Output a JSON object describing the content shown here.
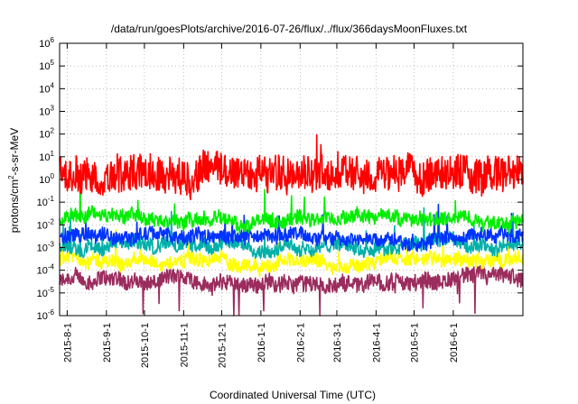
{
  "chart_data": {
    "type": "line",
    "title": "/data/run/goesPlots/archive/2016-07-26/flux/../flux/366daysMoonFluxes.txt",
    "xlabel": "Coordinated Universal Time (UTC)",
    "ylabel": "protons/cm²-s-sr-MeV",
    "ylabel_parts": {
      "pre": "protons/cm",
      "sup": "2",
      "post": "-s-sr-MeV"
    },
    "x_ticks": [
      "2015-8-1",
      "2015-9-1",
      "2015-10-1",
      "2015-11-1",
      "2015-12-1",
      "2016-1-1",
      "2016-2-1",
      "2016-3-1",
      "2016-4-1",
      "2016-5-1",
      "2016-6-1"
    ],
    "xlim": [
      "2015-07-26",
      "2016-07-26"
    ],
    "y_scale": "log",
    "ylim": [
      1e-06,
      1000000.0
    ],
    "y_ticks": [
      {
        "value": 1e-06,
        "base": "10",
        "exp": "-6"
      },
      {
        "value": 1e-05,
        "base": "10",
        "exp": "-5"
      },
      {
        "value": 0.0001,
        "base": "10",
        "exp": "-4"
      },
      {
        "value": 0.001,
        "base": "10",
        "exp": "-3"
      },
      {
        "value": 0.01,
        "base": "10",
        "exp": "-2"
      },
      {
        "value": 0.1,
        "base": "10",
        "exp": "-1"
      },
      {
        "value": 1.0,
        "base": "10",
        "exp": "0"
      },
      {
        "value": 10.0,
        "base": "10",
        "exp": "1"
      },
      {
        "value": 100.0,
        "base": "10",
        "exp": "2"
      },
      {
        "value": 1000.0,
        "base": "10",
        "exp": "3"
      },
      {
        "value": 10000.0,
        "base": "10",
        "exp": "4"
      },
      {
        "value": 100000.0,
        "base": "10",
        "exp": "5"
      },
      {
        "value": 1000000.0,
        "base": "10",
        "exp": "6"
      }
    ],
    "grid": true,
    "legend": "none",
    "series": [
      {
        "color": "#9b2c5e",
        "baseline": 3e-05,
        "noise": 0.35
      },
      {
        "color": "#ffff00",
        "baseline": 0.00025,
        "noise": 0.3
      },
      {
        "color": "#00b0a8",
        "baseline": 0.0012,
        "noise": 0.3
      },
      {
        "color": "#0033ff",
        "baseline": 0.003,
        "noise": 0.3
      },
      {
        "color": "#00ee00",
        "baseline": 0.02,
        "noise": 0.3
      },
      {
        "color": "#ff0000",
        "baseline": 2.0,
        "noise": 0.8
      }
    ]
  }
}
